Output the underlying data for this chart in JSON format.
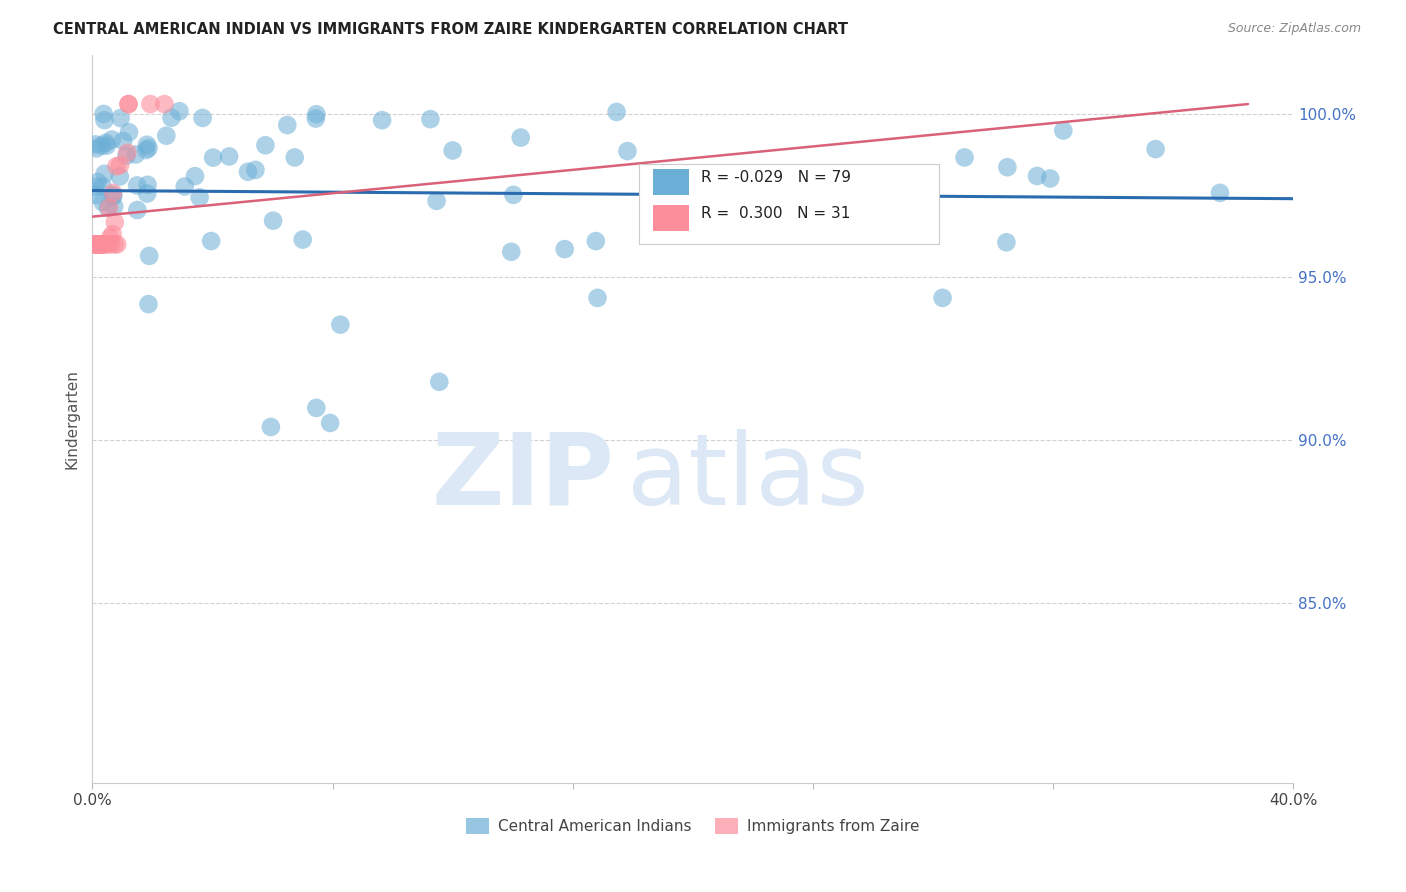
{
  "title": "CENTRAL AMERICAN INDIAN VS IMMIGRANTS FROM ZAIRE KINDERGARTEN CORRELATION CHART",
  "source": "Source: ZipAtlas.com",
  "ylabel": "Kindergarten",
  "xlim": [
    0.0,
    0.4
  ],
  "ylim": [
    0.795,
    1.018
  ],
  "legend_blue_r": "-0.029",
  "legend_blue_n": "79",
  "legend_pink_r": "0.300",
  "legend_pink_n": "31",
  "blue_color": "#6baed6",
  "pink_color": "#fc8d9a",
  "blue_line_color": "#2b6cb0",
  "pink_line_color": "#d9627a",
  "yticks": [
    1.0,
    0.95,
    0.9,
    0.85
  ],
  "ytick_labels": [
    "100.0%",
    "95.0%",
    "90.0%",
    "85.0%"
  ],
  "xtick_labels": [
    "0.0%",
    "",
    "",
    "",
    "",
    "40.0%"
  ],
  "xtick_positions": [
    0.0,
    0.08,
    0.16,
    0.24,
    0.32,
    0.4
  ],
  "watermark_zip": "ZIP",
  "watermark_atlas": "atlas",
  "background_color": "#ffffff",
  "grid_color": "#cccccc",
  "legend_label_blue": "Central American Indians",
  "legend_label_pink": "Immigrants from Zaire"
}
